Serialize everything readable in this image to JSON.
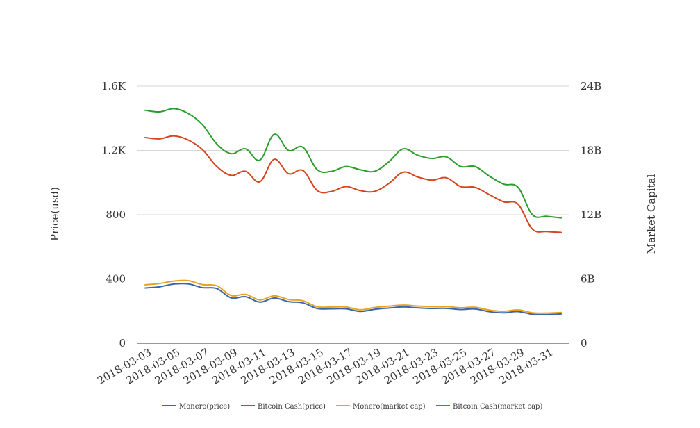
{
  "chart_data": {
    "type": "line",
    "x": [
      "2018-03-03",
      "2018-03-04",
      "2018-03-05",
      "2018-03-06",
      "2018-03-07",
      "2018-03-08",
      "2018-03-09",
      "2018-03-10",
      "2018-03-11",
      "2018-03-12",
      "2018-03-13",
      "2018-03-14",
      "2018-03-15",
      "2018-03-16",
      "2018-03-17",
      "2018-03-18",
      "2018-03-19",
      "2018-03-20",
      "2018-03-21",
      "2018-03-22",
      "2018-03-23",
      "2018-03-24",
      "2018-03-25",
      "2018-03-26",
      "2018-03-27",
      "2018-03-28",
      "2018-03-29",
      "2018-03-30",
      "2018-03-31",
      "2018-04-01"
    ],
    "x_tick_labels": [
      "2018-03-03",
      "2018-03-05",
      "2018-03-07",
      "2018-03-09",
      "2018-03-11",
      "2018-03-13",
      "2018-03-15",
      "2018-03-17",
      "2018-03-19",
      "2018-03-21",
      "2018-03-23",
      "2018-03-25",
      "2018-03-27",
      "2018-03-29",
      "2018-03-31"
    ],
    "y_left": {
      "label": "Price(usd)",
      "ticks": [
        0,
        400,
        800,
        1200,
        1600
      ],
      "tick_labels": [
        "0",
        "400",
        "800",
        "1.2K",
        "1.6K"
      ],
      "range": [
        0,
        1600
      ]
    },
    "y_right": {
      "label": "Market Capital",
      "ticks": [
        0,
        6000000000,
        12000000000,
        18000000000,
        24000000000
      ],
      "tick_labels": [
        "0",
        "6B",
        "12B",
        "18B",
        "24B"
      ],
      "range": [
        0,
        24000000000
      ]
    },
    "grid": true,
    "legend_position": "bottom",
    "series": [
      {
        "name": "Monero(price)",
        "axis": "left",
        "color": "#3a65a8",
        "values": [
          344,
          351,
          368,
          369,
          346,
          340,
          282,
          289,
          256,
          281,
          259,
          251,
          216,
          214,
          214,
          198,
          211,
          219,
          226,
          220,
          216,
          217,
          210,
          213,
          196,
          189,
          197,
          180,
          178,
          182
        ]
      },
      {
        "name": "Bitcoin Cash(price)",
        "axis": "left",
        "color": "#d4451f",
        "values": [
          1280,
          1272,
          1290,
          1265,
          1205,
          1100,
          1045,
          1070,
          1005,
          1145,
          1055,
          1075,
          950,
          945,
          975,
          950,
          945,
          995,
          1065,
          1035,
          1015,
          1030,
          975,
          970,
          925,
          880,
          865,
          710,
          695,
          690
        ]
      },
      {
        "name": "Monero(market cap)",
        "axis": "right",
        "color": "#e8a21f",
        "values": [
          5450000000,
          5570000000,
          5800000000,
          5840000000,
          5470000000,
          5360000000,
          4450000000,
          4560000000,
          4040000000,
          4430000000,
          4080000000,
          3960000000,
          3410000000,
          3380000000,
          3380000000,
          3120000000,
          3330000000,
          3460000000,
          3560000000,
          3470000000,
          3410000000,
          3420000000,
          3310000000,
          3360000000,
          3090000000,
          2980000000,
          3110000000,
          2840000000,
          2810000000,
          2870000000
        ]
      },
      {
        "name": "Bitcoin Cash(market cap)",
        "axis": "right",
        "color": "#2c9c2c",
        "values": [
          21750000000,
          21600000000,
          21900000000,
          21450000000,
          20400000000,
          18600000000,
          17700000000,
          18150000000,
          17100000000,
          19500000000,
          18000000000,
          18300000000,
          16200000000,
          16050000000,
          16500000000,
          16200000000,
          16050000000,
          16950000000,
          18150000000,
          17550000000,
          17250000000,
          17400000000,
          16500000000,
          16500000000,
          15600000000,
          14850000000,
          14550000000,
          12000000000,
          11850000000,
          11700000000
        ]
      }
    ]
  }
}
